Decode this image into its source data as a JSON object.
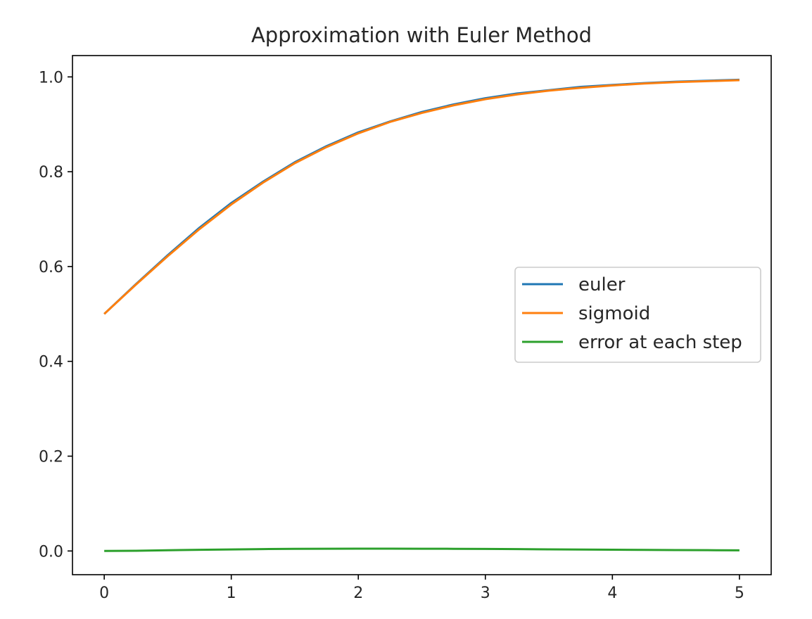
{
  "chart_data": {
    "type": "line",
    "title": "Approximation with Euler Method",
    "xlabel": "",
    "ylabel": "",
    "xlim": [
      -0.25,
      5.25
    ],
    "ylim": [
      -0.05,
      1.045
    ],
    "x_ticks": [
      0,
      1,
      2,
      3,
      4,
      5
    ],
    "y_ticks": [
      0.0,
      0.2,
      0.4,
      0.6,
      0.8,
      1.0
    ],
    "x_tick_labels": [
      "0",
      "1",
      "2",
      "3",
      "4",
      "5"
    ],
    "y_tick_labels": [
      "0.0",
      "0.2",
      "0.4",
      "0.6",
      "0.8",
      "1.0"
    ],
    "grid": false,
    "legend_position": "center-right",
    "x": [
      0,
      0.25,
      0.5,
      0.75,
      1.0,
      1.25,
      1.5,
      1.75,
      2.0,
      2.25,
      2.5,
      2.75,
      3.0,
      3.25,
      3.5,
      3.75,
      4.0,
      4.25,
      4.5,
      4.75,
      5.0
    ],
    "series": [
      {
        "name": "euler",
        "color": "#1f77b4",
        "values": [
          0.5,
          0.563,
          0.624,
          0.682,
          0.734,
          0.779,
          0.82,
          0.854,
          0.883,
          0.906,
          0.926,
          0.942,
          0.955,
          0.965,
          0.972,
          0.979,
          0.983,
          0.987,
          0.99,
          0.992,
          0.994
        ]
      },
      {
        "name": "sigmoid",
        "color": "#ff7f0e",
        "values": [
          0.5,
          0.562,
          0.622,
          0.679,
          0.731,
          0.777,
          0.818,
          0.852,
          0.881,
          0.905,
          0.924,
          0.94,
          0.953,
          0.963,
          0.971,
          0.977,
          0.982,
          0.986,
          0.989,
          0.991,
          0.993
        ]
      },
      {
        "name": "error at each step",
        "color": "#2ca02c",
        "values": [
          0.0,
          0.0005,
          0.0015,
          0.0025,
          0.0033,
          0.004,
          0.0045,
          0.0048,
          0.0049,
          0.0049,
          0.0048,
          0.0046,
          0.0043,
          0.0039,
          0.0035,
          0.0031,
          0.0027,
          0.0023,
          0.002,
          0.0017,
          0.0014
        ]
      }
    ]
  }
}
